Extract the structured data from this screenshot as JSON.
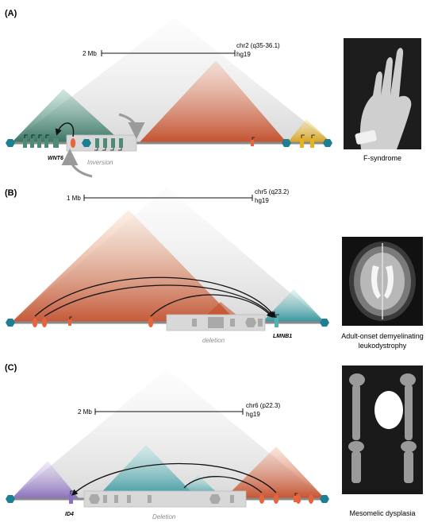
{
  "panels": [
    {
      "letter": "(A)",
      "scale_label": "2 Mb",
      "region": "chr2 (q35-36.1)",
      "assembly": "hg19",
      "gene": "WNT6",
      "sv_label": "Inversion",
      "disease": "F-syndrome"
    },
    {
      "letter": "(B)",
      "scale_label": "1 Mb",
      "region": "chr5 (q23.2)",
      "assembly": "hg19",
      "gene": "LMNB1",
      "sv_label": "deletion",
      "disease_line1": "Adult-onset demyelinating",
      "disease_line2": "leukodystrophy"
    },
    {
      "letter": "(C)",
      "scale_label": "2 Mb",
      "region": "chr6 (p22.3)",
      "assembly": "hg19",
      "gene": "ID4",
      "sv_label": "Deletion",
      "disease": "Mesomelic dysplasia"
    }
  ],
  "colors": {
    "tad_green": "#3d7a6a",
    "tad_orange": "#d9663f",
    "tad_yellow": "#e8b41e",
    "tad_teal": "#4fb3b5",
    "tad_purple": "#9b7ec9",
    "ctcf": "#1d7f93",
    "gene_green": "#4e8a78",
    "enhancer": "#e8643a",
    "sv_box": "#d8d8d8"
  }
}
